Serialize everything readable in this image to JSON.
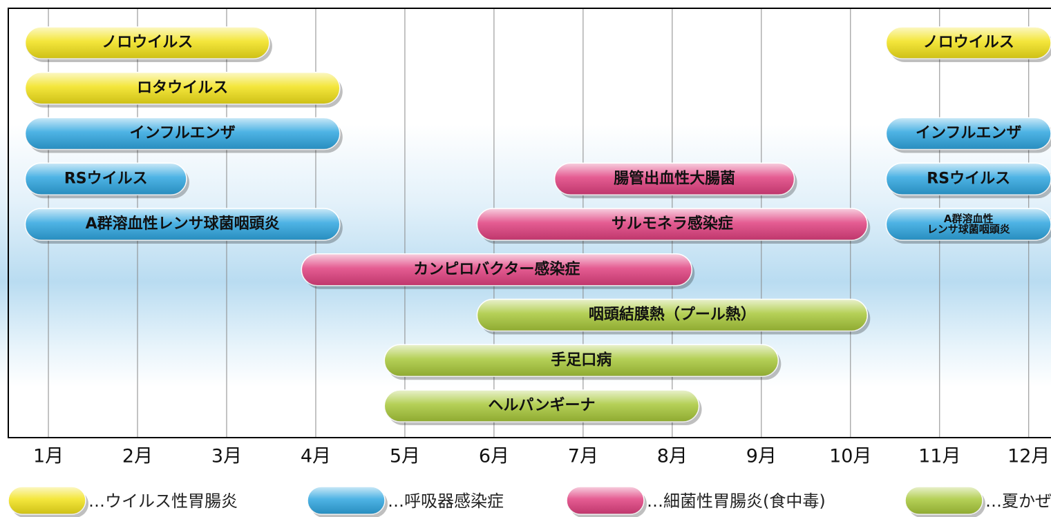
{
  "chart_data": {
    "type": "gantt",
    "xlim": [
      0.55,
      12.25
    ],
    "xticks": [
      {
        "value": 1,
        "label": "1月"
      },
      {
        "value": 2,
        "label": "2月"
      },
      {
        "value": 3,
        "label": "3月"
      },
      {
        "value": 4,
        "label": "4月"
      },
      {
        "value": 5,
        "label": "5月"
      },
      {
        "value": 6,
        "label": "6月"
      },
      {
        "value": 7,
        "label": "7月"
      },
      {
        "value": 8,
        "label": "8月"
      },
      {
        "value": 9,
        "label": "9月"
      },
      {
        "value": 10,
        "label": "10月"
      },
      {
        "value": 11,
        "label": "11月"
      },
      {
        "value": 12,
        "label": "12月"
      }
    ],
    "grid": true,
    "groups": [
      {
        "name": "…ウイルス性胃腸炎",
        "color": "#f2e21a"
      },
      {
        "name": "…呼吸器感染症",
        "color": "#2fa6e0"
      },
      {
        "name": "…細菌性胃腸炎(食中毒)",
        "color": "#e0407f"
      },
      {
        "name": "…夏かぜ",
        "color": "#a8c83a"
      }
    ],
    "rows": [
      [
        {
          "label": [
            "ノロウイルス"
          ],
          "group": 0,
          "start": 0.74,
          "end": 3.48
        },
        {
          "label": [
            "ノロウイルス"
          ],
          "group": 0,
          "start": 10.4,
          "end": 12.25
        }
      ],
      [
        {
          "label": [
            "ロタウイルス"
          ],
          "group": 0,
          "start": 0.74,
          "end": 4.27
        }
      ],
      [
        {
          "label": [
            "インフルエンザ"
          ],
          "group": 1,
          "start": 0.74,
          "end": 4.27
        },
        {
          "label": [
            "インフルエンザ"
          ],
          "group": 1,
          "start": 10.4,
          "end": 12.25
        }
      ],
      [
        {
          "label": [
            "RSウイルス"
          ],
          "group": 1,
          "start": 0.74,
          "end": 2.55
        },
        {
          "label": [
            "腸管出血性大腸菌"
          ],
          "group": 2,
          "start": 6.68,
          "end": 9.37
        },
        {
          "label": [
            "RSウイルス"
          ],
          "group": 1,
          "start": 10.4,
          "end": 12.25
        }
      ],
      [
        {
          "label": [
            "A群溶血性レンサ球菌咽頭炎"
          ],
          "group": 1,
          "start": 0.74,
          "end": 4.27
        },
        {
          "label": [
            "サルモネラ感染症"
          ],
          "group": 2,
          "start": 5.81,
          "end": 10.19
        },
        {
          "label": [
            "A群溶血性",
            "レンサ球菌咽頭炎"
          ],
          "group": 1,
          "start": 10.4,
          "end": 12.25
        }
      ],
      [
        {
          "label": [
            "カンピロバクター感染症"
          ],
          "group": 2,
          "start": 3.84,
          "end": 8.22
        }
      ],
      [
        {
          "label": [
            "咽頭結膜熱（プール熱）"
          ],
          "group": 3,
          "start": 5.81,
          "end": 10.19
        }
      ],
      [
        {
          "label": [
            "手足口病"
          ],
          "group": 3,
          "start": 4.77,
          "end": 9.19
        }
      ],
      [
        {
          "label": [
            "ヘルパンギーナ"
          ],
          "group": 3,
          "start": 4.77,
          "end": 8.3
        }
      ]
    ]
  }
}
